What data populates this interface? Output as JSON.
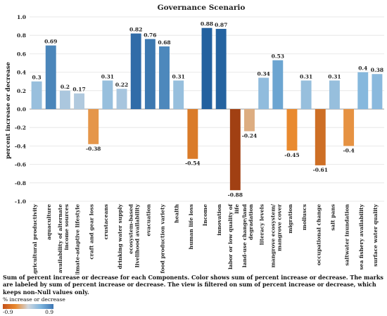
{
  "chart_data": {
    "type": "bar",
    "title": "Governance Scenario",
    "xlabel": "",
    "ylabel": "percent increase or decrease",
    "ylim": [
      -1.0,
      1.0
    ],
    "yticks": [
      "1.0",
      "0.8",
      "0.6",
      "0.4",
      "0.2",
      "0.0",
      "-0.2",
      "-0.4",
      "-0.6",
      "-0.8",
      "-1.0"
    ],
    "grid": "horizontal",
    "categories": [
      "Agricultural productivity",
      "aquaculture",
      "availability of alternate income sources",
      "climate-adaptive lifestyle",
      "craft and gear loss",
      "crustaceans",
      "drinking water supply",
      "ecosystem-based livelihood availability",
      "evacuation",
      "food production variety",
      "health",
      "human life loss",
      "Income",
      "innovation",
      "labor or low quality of life",
      "land-use change/land degradation",
      "literacy levels",
      "mangrove ecosystem/ mangrove cover",
      "migration",
      "molluscs",
      "occupational change",
      "salt pans",
      "saltwater inundation",
      "sea fishery availability",
      "surface water quality"
    ],
    "category_lines": [
      [
        "Agricultural productivity"
      ],
      [
        "aquaculture"
      ],
      [
        "availability of alternate",
        "income sources"
      ],
      [
        "climate-adaptive lifestyle"
      ],
      [
        "craft and gear loss"
      ],
      [
        "crustaceans"
      ],
      [
        "drinking water supply"
      ],
      [
        "ecosystem-based",
        "livelihood availability"
      ],
      [
        "evacuation"
      ],
      [
        "food production variety"
      ],
      [
        "health"
      ],
      [
        "human life loss"
      ],
      [
        "Income"
      ],
      [
        "innovation"
      ],
      [
        "labor or low quality of",
        "life"
      ],
      [
        "land-use change/land",
        "degradation"
      ],
      [
        "literacy levels"
      ],
      [
        "mangrove ecosystem/",
        "mangrove cover"
      ],
      [
        "migration"
      ],
      [
        "molluscs"
      ],
      [
        "occupational change"
      ],
      [
        "salt pans"
      ],
      [
        "saltwater inundation"
      ],
      [
        "sea fishery availability"
      ],
      [
        "surface water quality"
      ]
    ],
    "values": [
      0.3,
      0.69,
      0.2,
      0.17,
      -0.38,
      0.31,
      0.22,
      0.82,
      0.76,
      0.68,
      0.31,
      -0.54,
      0.88,
      0.87,
      -0.88,
      -0.24,
      0.34,
      0.53,
      -0.45,
      0.31,
      -0.61,
      0.31,
      -0.4,
      0.4,
      0.38
    ],
    "value_labels": [
      "0.3",
      "0.69",
      "0.2",
      "0.17",
      "-0.38",
      "0.31",
      "0.22",
      "0.82",
      "0.76",
      "0.68",
      "0.31",
      "-0.54",
      "0.88",
      "0.87",
      "-0.88",
      "-0.24",
      "0.34",
      "0.53",
      "-0.45",
      "0.31",
      "-0.61",
      "0.31",
      "-0.4",
      "0.4",
      "0.38"
    ],
    "color_scale": {
      "title": "% increase or decrease",
      "min_label": "-0.9",
      "max_label": "0.9",
      "min": -0.9,
      "max": 0.9,
      "stops": [
        "#9e3d12",
        "#e98a2f",
        "#cfd6de",
        "#7db4dd",
        "#1f5d9c"
      ]
    }
  },
  "caption": "Sum of percent increase or decrease for each Components.  Color shows sum of percent increase or decrease.  The marks are labeled by sum of percent increase or decrease. The view is filtered on sum of percent increase or decrease, which keeps non-Null values only."
}
